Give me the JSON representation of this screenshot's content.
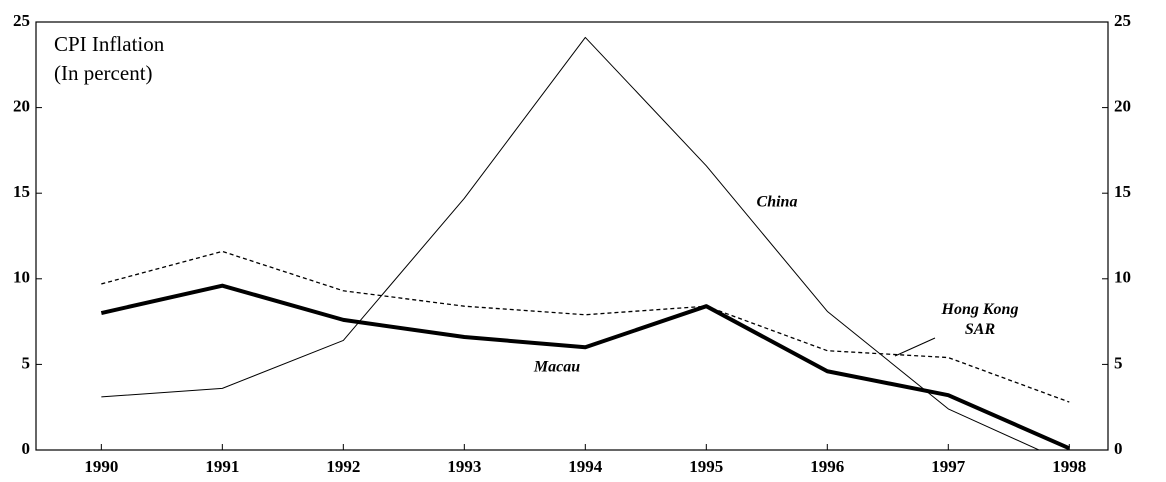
{
  "chart_data": {
    "type": "line",
    "title": "CPI Inflation",
    "subtitle": "(In percent)",
    "x": [
      1990,
      1991,
      1992,
      1993,
      1994,
      1995,
      1996,
      1997,
      1998
    ],
    "xlim": [
      1989.46,
      1998.32
    ],
    "xticks": [
      1990,
      1991,
      1992,
      1993,
      1994,
      1995,
      1996,
      1997,
      1998
    ],
    "ylim": [
      0,
      25
    ],
    "yticks": [
      0,
      5,
      10,
      15,
      20,
      25
    ],
    "y2lim": [
      0,
      25
    ],
    "y2ticks": [
      0,
      5,
      10,
      15,
      20,
      25
    ],
    "grid": false,
    "series": [
      {
        "name": "China",
        "color": "#000000",
        "style": "solid",
        "values": [
          3.1,
          3.6,
          6.4,
          14.7,
          24.1,
          16.6,
          8.1,
          2.4,
          -0.8
        ]
      },
      {
        "name": "Hong Kong SAR",
        "color": "#000000",
        "style": "dashed",
        "values": [
          9.7,
          11.6,
          9.3,
          8.4,
          7.9,
          8.4,
          5.8,
          5.4,
          2.8
        ]
      },
      {
        "name": "Macau",
        "color": "#000000",
        "style": "thick",
        "values": [
          8.0,
          9.6,
          7.6,
          6.6,
          6.0,
          8.4,
          4.6,
          3.2,
          0.1
        ]
      }
    ]
  }
}
